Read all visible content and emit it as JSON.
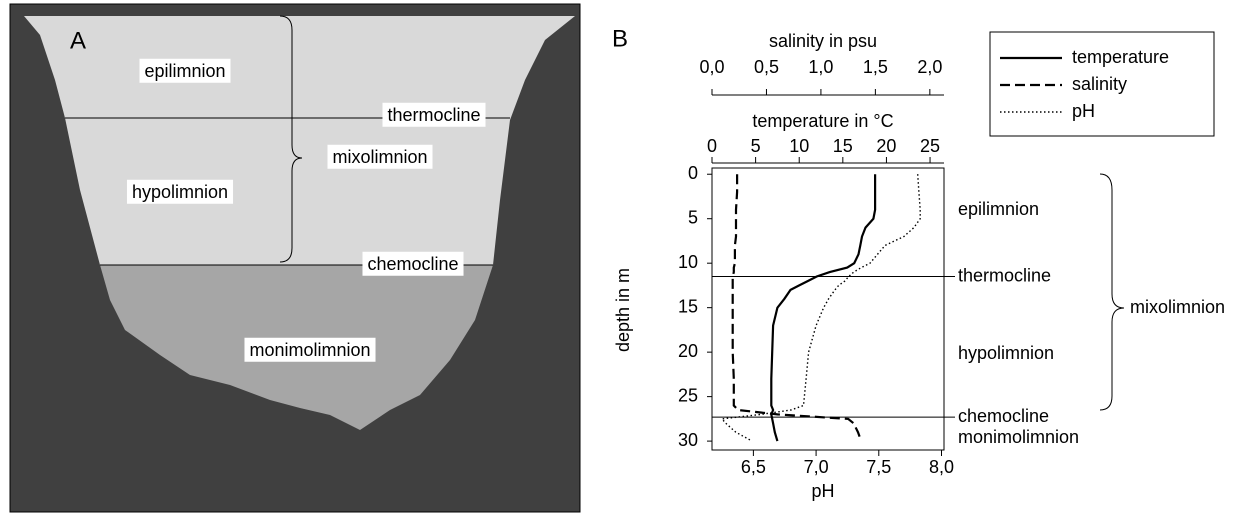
{
  "panel_a": {
    "label": "A",
    "zones": [
      "epilimnion",
      "thermocline",
      "mixolimnion",
      "hypolimnion",
      "chemocline",
      "monimolimnion"
    ]
  },
  "chart_data": {
    "type": "line",
    "label": "B",
    "ylabel": "depth in m",
    "ylim": [
      -0.7,
      31
    ],
    "yticks": [
      0,
      5,
      10,
      15,
      20,
      25,
      30
    ],
    "y": [
      0,
      2,
      4,
      5,
      6,
      7,
      8,
      9,
      10,
      10.5,
      11,
      11.5,
      12,
      12.5,
      13,
      14,
      15,
      17,
      20,
      23,
      26,
      26.5,
      27,
      27.5,
      28,
      29,
      30
    ],
    "axes": {
      "x": {
        "label": "temperature in °C",
        "lim": [
          0,
          26.6
        ],
        "ticks": [
          0,
          5,
          10,
          15,
          20,
          25
        ]
      },
      "x2": {
        "label": "salinity in psu",
        "lim": [
          0,
          2.13
        ],
        "ticks": [
          {
            "value": 0,
            "label": "0,0"
          },
          {
            "value": 0.5,
            "label": "0,5"
          },
          {
            "value": 1,
            "label": "1,0"
          },
          {
            "value": 1.5,
            "label": "1,5"
          },
          {
            "value": 2,
            "label": "2,0"
          }
        ]
      },
      "x3": {
        "label": "pH",
        "lim": [
          6.17,
          8.02
        ],
        "ticks": [
          {
            "value": 6.5,
            "label": "6,5"
          },
          {
            "value": 7,
            "label": "7,0"
          },
          {
            "value": 7.5,
            "label": "7,5"
          },
          {
            "value": 8,
            "label": "8,0"
          }
        ]
      }
    },
    "series": [
      {
        "name": "temperature",
        "axis": "x",
        "color": "#000000",
        "dash": "solid",
        "values": [
          18.7,
          18.7,
          18.7,
          18.5,
          17.6,
          17.2,
          17,
          16.8,
          16.3,
          15.5,
          13.5,
          12,
          11,
          10,
          9,
          8.3,
          7.5,
          7,
          6.9,
          6.8,
          6.8,
          7,
          6.8,
          6.9,
          7,
          7.2,
          7.5
        ]
      },
      {
        "name": "salinity",
        "axis": "x2",
        "color": "#000000",
        "dash": "dashed",
        "values": [
          0.23,
          0.23,
          0.22,
          0.22,
          0.22,
          0.22,
          0.21,
          0.21,
          0.21,
          0.2,
          0.2,
          0.19,
          0.19,
          0.19,
          0.19,
          0.19,
          0.19,
          0.19,
          0.19,
          0.2,
          0.2,
          0.24,
          0.6,
          1.25,
          1.3,
          1.34,
          1.37
        ]
      },
      {
        "name": "pH",
        "axis": "x3",
        "color": "#000000",
        "dash": "dotted",
        "values": [
          7.81,
          7.82,
          7.83,
          7.83,
          7.78,
          7.7,
          7.55,
          7.49,
          7.43,
          7.36,
          7.3,
          7.26,
          7.23,
          7.18,
          7.15,
          7.1,
          7.06,
          7.0,
          6.94,
          6.92,
          6.9,
          6.8,
          6.56,
          6.25,
          6.28,
          6.36,
          6.49
        ]
      }
    ],
    "boundaries": [
      {
        "label": "thermocline",
        "depth": 11.5
      },
      {
        "label": "chemocline",
        "depth": 27.3
      }
    ],
    "zones": [
      "epilimnion",
      "hypolimnion",
      "monimolimnion",
      "mixolimnion"
    ],
    "legend": "top-right"
  }
}
